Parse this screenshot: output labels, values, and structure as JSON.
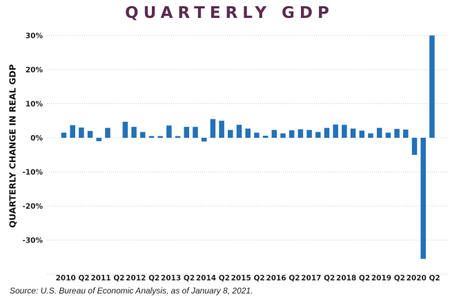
{
  "title": "QUARTERLY GDP",
  "source": "Source: U.S. Bureau of Economic Analysis, as of January 8, 2021.",
  "chart_data": {
    "type": "bar",
    "title": "QUARTERLY GDP",
    "xlabel": "",
    "ylabel": "QUARTERLY CHANGE IN REAL GDP",
    "ylim": [
      -40,
      30
    ],
    "yticks": [
      -30,
      -20,
      -10,
      0,
      10,
      20,
      30
    ],
    "ytick_labels": [
      "-30%",
      "-20%",
      "-10%",
      "0%",
      "10%",
      "20%",
      "30%"
    ],
    "xtick_labels": [
      "2010 Q2",
      "2011 Q2",
      "2012 Q2",
      "2013 Q2",
      "2014 Q2",
      "2015 Q2",
      "2016 Q2",
      "2017 Q2",
      "2018 Q2",
      "2019 Q2",
      "2020 Q2"
    ],
    "grid": "horizontal dotted",
    "bar_color": "#2271b8",
    "categories": [
      "2010 Q1",
      "2010 Q2",
      "2010 Q3",
      "2010 Q4",
      "2011 Q1",
      "2011 Q2",
      "2011 Q3",
      "2011 Q4",
      "2012 Q1",
      "2012 Q2",
      "2012 Q3",
      "2012 Q4",
      "2013 Q1",
      "2013 Q2",
      "2013 Q3",
      "2013 Q4",
      "2014 Q1",
      "2014 Q2",
      "2014 Q3",
      "2014 Q4",
      "2015 Q1",
      "2015 Q2",
      "2015 Q3",
      "2015 Q4",
      "2016 Q1",
      "2016 Q2",
      "2016 Q3",
      "2016 Q4",
      "2017 Q1",
      "2017 Q2",
      "2017 Q3",
      "2017 Q4",
      "2018 Q1",
      "2018 Q2",
      "2018 Q3",
      "2018 Q4",
      "2019 Q1",
      "2019 Q2",
      "2019 Q3",
      "2019 Q4",
      "2020 Q1",
      "2020 Q2",
      "2020 Q3"
    ],
    "values": [
      1.5,
      3.7,
      3.0,
      2.0,
      -1.0,
      2.9,
      0.0,
      4.7,
      3.2,
      1.7,
      0.5,
      0.5,
      3.6,
      0.5,
      3.2,
      3.2,
      -1.1,
      5.5,
      5.0,
      2.3,
      3.8,
      2.7,
      1.5,
      0.6,
      2.3,
      1.3,
      2.2,
      2.5,
      2.3,
      1.7,
      2.9,
      3.9,
      3.8,
      2.7,
      2.1,
      1.3,
      2.9,
      1.5,
      2.6,
      2.4,
      -5.0,
      -35.5,
      30.0
    ]
  }
}
